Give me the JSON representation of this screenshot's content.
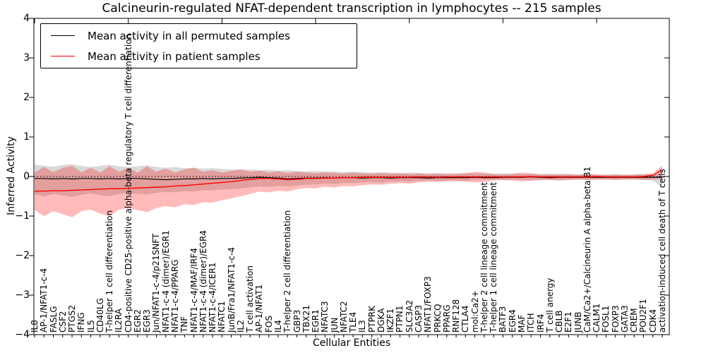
{
  "title": "Calcineurin-regulated NFAT-dependent transcription in lymphocytes -- 215 samples",
  "xlabel": "Cellular Entities",
  "ylabel": "Inferred Activity",
  "legend": [
    {
      "label": "Mean activity in all permuted samples"
    },
    {
      "label": "Mean activity in patient samples"
    }
  ],
  "colors": {
    "permuted_line": "#000000",
    "patient_line": "#ff0000",
    "permuted_band": "#888888",
    "patient_band": "#ff0000"
  },
  "chart_data": {
    "type": "line",
    "title": "Calcineurin-regulated NFAT-dependent transcription in lymphocytes -- 215 samples",
    "xlabel": "Cellular Entities",
    "ylabel": "Inferred Activity",
    "ylim": [
      -4,
      4
    ],
    "grid": false,
    "legend_position": "upper left",
    "zero_line_dotted": true,
    "yticks": [
      {
        "v": 4,
        "label": "4"
      },
      {
        "v": 3,
        "label": "3"
      },
      {
        "v": 2,
        "label": "2"
      },
      {
        "v": 1,
        "label": "1"
      },
      {
        "v": 0,
        "label": "0"
      },
      {
        "v": -1,
        "label": "−1"
      },
      {
        "v": -2,
        "label": "−2"
      },
      {
        "v": -3,
        "label": "−3"
      },
      {
        "v": -4,
        "label": "−4"
      }
    ],
    "categories": [
      "IL8",
      "AP-1/NFAT1-c-4",
      "FASLG",
      "CSF2",
      "PTGS2",
      "IFNG",
      "IL5",
      "CD40LG",
      "T-helper 1 cell differentiation",
      "IL2RA",
      "CD4-positive CD25-positive alpha-beta regulatory T cell differentiation",
      "EGR2",
      "EGR3",
      "Jun/NFAT1-c-4/p21SNFT",
      "NFAT1-c-4 (dimer)/EGR1",
      "NFAT1-c-4/PPARG",
      "TNF",
      "NFAT1-c-4/MAF/IRF4",
      "NFAT1-c-4 (dimer)/EGR4",
      "NFAT1-c-4/ICER1",
      "NFATC1",
      "JunB/Fra1/NFAT1-c-4",
      "IL2",
      "T cell activation",
      "AP-1/NFAT1",
      "FOS",
      "IL4",
      "T-helper 2 cell differentiation",
      "GBP3",
      "TBX21",
      "EGR1",
      "NFATC3",
      "JUN",
      "NFATC2",
      "TLE4",
      "IL3",
      "PTPRK",
      "DGKA",
      "IKZF1",
      "PTPN1",
      "SLC3A2",
      "CASP3",
      "NFAT1/FOXP3",
      "PRKCQ",
      "PPARG",
      "RNF128",
      "CTLA4",
      "mol:Ca2+",
      "T-helper 2 cell lineage commitment",
      "T-helper 1 cell lineage commitment",
      "BATF3",
      "EGR4",
      "MAF",
      "ITCH",
      "IRF4",
      "T cell anergy",
      "CBLB",
      "E2F1",
      "JUNB",
      "CaM/Ca2+/Calcineurin A alpha-beta B1",
      "CALM1",
      "FOSL1",
      "FOXP3",
      "GATA3",
      "CREM",
      "POU2F1",
      "CDK4",
      "activation-induced cell death of T cells"
    ],
    "series": [
      {
        "name": "Mean activity in all permuted samples",
        "color": "#000000",
        "width": 1.2,
        "values": [
          -0.05,
          -0.05,
          -0.06,
          -0.05,
          -0.06,
          -0.05,
          -0.05,
          -0.06,
          -0.05,
          -0.06,
          -0.05,
          -0.05,
          -0.06,
          -0.07,
          -0.08,
          -0.07,
          -0.06,
          -0.06,
          -0.05,
          -0.06,
          -0.05,
          -0.05,
          -0.04,
          -0.03,
          -0.02,
          -0.03,
          -0.04,
          -0.06,
          -0.05,
          -0.04,
          -0.04,
          -0.03,
          -0.04,
          -0.03,
          -0.03,
          -0.04,
          -0.03,
          -0.03,
          -0.04,
          -0.03,
          -0.03,
          -0.03,
          -0.04,
          -0.03,
          -0.03,
          -0.03,
          -0.03,
          -0.02,
          -0.03,
          -0.03,
          -0.02,
          -0.02,
          -0.02,
          -0.01,
          -0.02,
          -0.03,
          -0.02,
          -0.02,
          -0.02,
          -0.02,
          -0.02,
          -0.02,
          -0.02,
          -0.02,
          -0.02,
          -0.02,
          -0.02,
          -0.02
        ]
      },
      {
        "name": "Mean activity in patient samples",
        "color": "#ff0000",
        "width": 1.4,
        "values": [
          -0.37,
          -0.37,
          -0.36,
          -0.36,
          -0.35,
          -0.34,
          -0.33,
          -0.32,
          -0.31,
          -0.31,
          -0.3,
          -0.29,
          -0.28,
          -0.27,
          -0.26,
          -0.24,
          -0.23,
          -0.21,
          -0.19,
          -0.17,
          -0.15,
          -0.13,
          -0.1,
          -0.07,
          -0.05,
          -0.05,
          -0.06,
          -0.08,
          -0.07,
          -0.05,
          -0.05,
          -0.04,
          -0.04,
          -0.03,
          -0.03,
          -0.02,
          -0.02,
          -0.02,
          -0.02,
          -0.02,
          -0.02,
          -0.01,
          -0.01,
          -0.02,
          -0.01,
          -0.01,
          -0.01,
          -0.01,
          -0.01,
          -0.01,
          -0.01,
          -0.01,
          -0.01,
          0.0,
          -0.01,
          -0.01,
          -0.01,
          -0.01,
          -0.01,
          -0.01,
          0.0,
          -0.01,
          -0.01,
          -0.01,
          -0.01,
          0.0,
          0.03,
          0.17
        ]
      }
    ],
    "bands": [
      {
        "name": "permuted samples range",
        "color": "#888888",
        "opacity": 0.32,
        "upper": [
          0.3,
          0.27,
          0.25,
          0.29,
          0.31,
          0.27,
          0.24,
          0.27,
          0.3,
          0.26,
          0.24,
          0.26,
          0.28,
          0.24,
          0.22,
          0.24,
          0.21,
          0.22,
          0.2,
          0.21,
          0.19,
          0.18,
          0.17,
          0.18,
          0.16,
          0.17,
          0.15,
          0.16,
          0.14,
          0.13,
          0.14,
          0.12,
          0.13,
          0.11,
          0.12,
          0.11,
          0.1,
          0.11,
          0.1,
          0.09,
          0.1,
          0.09,
          0.08,
          0.09,
          0.08,
          0.08,
          0.09,
          0.08,
          0.07,
          0.07,
          0.08,
          0.07,
          0.06,
          0.07,
          0.06,
          0.06,
          0.07,
          0.06,
          0.05,
          0.06,
          0.05,
          0.05,
          0.06,
          0.05,
          0.05,
          0.06,
          0.05,
          0.05
        ],
        "lower": [
          -0.45,
          -0.5,
          -0.44,
          -0.48,
          -0.52,
          -0.46,
          -0.43,
          -0.47,
          -0.5,
          -0.44,
          -0.42,
          -0.44,
          -0.45,
          -0.41,
          -0.39,
          -0.4,
          -0.37,
          -0.38,
          -0.35,
          -0.35,
          -0.33,
          -0.32,
          -0.3,
          -0.28,
          -0.25,
          -0.26,
          -0.24,
          -0.25,
          -0.23,
          -0.21,
          -0.2,
          -0.18,
          -0.19,
          -0.16,
          -0.17,
          -0.15,
          -0.14,
          -0.15,
          -0.13,
          -0.12,
          -0.13,
          -0.11,
          -0.1,
          -0.11,
          -0.1,
          -0.1,
          -0.11,
          -0.09,
          -0.08,
          -0.08,
          -0.09,
          -0.08,
          -0.08,
          -0.09,
          -0.08,
          -0.08,
          -0.09,
          -0.08,
          -0.07,
          -0.08,
          -0.07,
          -0.07,
          -0.08,
          -0.07,
          -0.07,
          -0.08,
          -0.1,
          -0.28
        ]
      },
      {
        "name": "patient samples range",
        "color": "#ff0000",
        "opacity": 0.27,
        "upper": [
          0.1,
          0.24,
          0.11,
          0.22,
          0.27,
          0.11,
          0.22,
          0.1,
          0.26,
          0.12,
          0.22,
          0.1,
          0.26,
          0.12,
          0.2,
          0.1,
          0.18,
          0.22,
          0.12,
          0.16,
          0.1,
          0.14,
          0.18,
          0.12,
          0.15,
          0.1,
          0.13,
          0.09,
          0.12,
          0.1,
          0.08,
          0.11,
          0.09,
          0.08,
          0.1,
          0.08,
          0.07,
          0.09,
          0.07,
          0.08,
          0.06,
          0.08,
          0.06,
          0.07,
          0.06,
          0.07,
          0.08,
          0.12,
          0.1,
          0.06,
          0.05,
          0.07,
          0.1,
          0.08,
          0.05,
          0.06,
          0.05,
          0.06,
          0.05,
          0.06,
          0.05,
          0.04,
          0.05,
          0.04,
          0.05,
          0.06,
          0.08,
          0.28
        ],
        "lower": [
          -0.85,
          -1.0,
          -0.88,
          -0.95,
          -1.03,
          -0.88,
          -0.84,
          -0.94,
          -1.0,
          -0.84,
          -0.8,
          -0.85,
          -0.9,
          -0.8,
          -0.75,
          -0.78,
          -0.7,
          -0.72,
          -0.65,
          -0.66,
          -0.6,
          -0.55,
          -0.5,
          -0.44,
          -0.38,
          -0.4,
          -0.36,
          -0.38,
          -0.32,
          -0.29,
          -0.3,
          -0.26,
          -0.28,
          -0.24,
          -0.25,
          -0.22,
          -0.2,
          -0.21,
          -0.18,
          -0.17,
          -0.18,
          -0.15,
          -0.13,
          -0.14,
          -0.12,
          -0.12,
          -0.13,
          -0.15,
          -0.14,
          -0.1,
          -0.09,
          -0.1,
          -0.12,
          -0.11,
          -0.09,
          -0.09,
          -0.1,
          -0.09,
          -0.08,
          -0.09,
          -0.08,
          -0.08,
          -0.09,
          -0.08,
          -0.08,
          -0.09,
          -0.08,
          -0.05
        ]
      }
    ]
  }
}
